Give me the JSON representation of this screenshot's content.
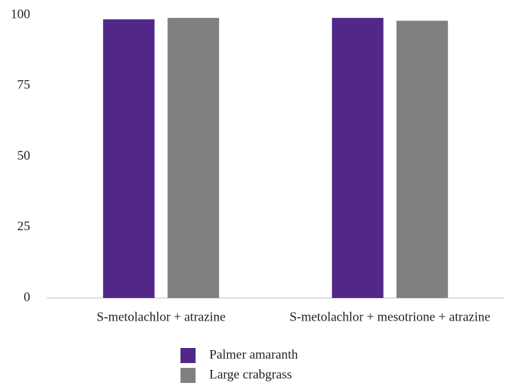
{
  "chart_data": {
    "type": "bar",
    "categories": [
      "S-metolachlor + atrazine",
      "S-metolachlor + mesotrione + atrazine"
    ],
    "series": [
      {
        "name": "Palmer amaranth",
        "color": "#512888",
        "values": [
          98.5,
          99
        ]
      },
      {
        "name": "Large crabgrass",
        "color": "#808080",
        "values": [
          99,
          98
        ]
      }
    ],
    "ylim": [
      0,
      100
    ],
    "yticks": [
      0,
      25,
      50,
      75,
      100
    ],
    "grid": false
  }
}
